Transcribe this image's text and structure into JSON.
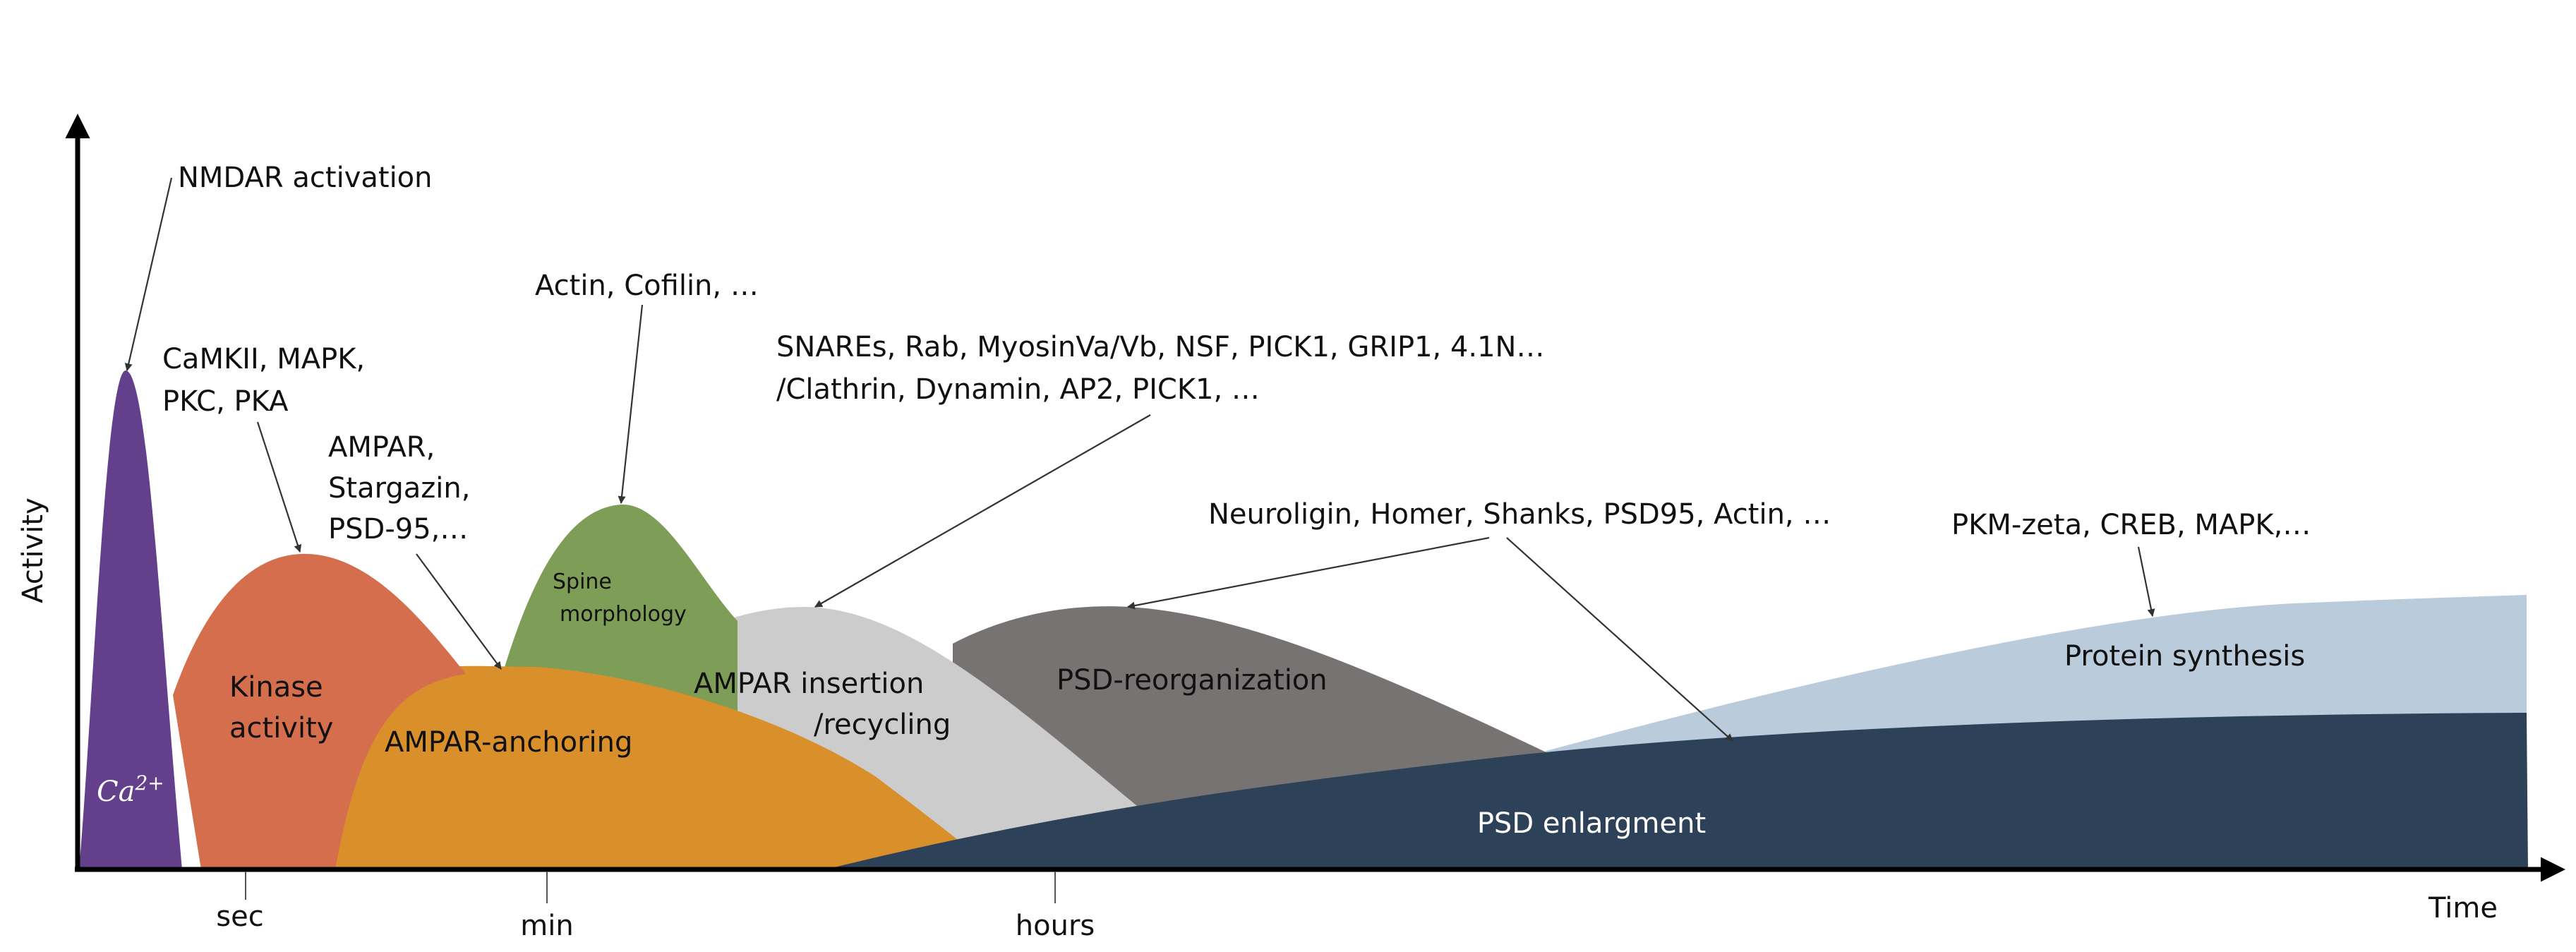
{
  "axes": {
    "y_label": "Activity",
    "x_label": "Time",
    "ticks": [
      {
        "label": "sec"
      },
      {
        "label": "min"
      },
      {
        "label": "hours"
      }
    ]
  },
  "regions": {
    "ca": {
      "label_main": "Ca",
      "label_sup": "2+",
      "color": "#633F8C"
    },
    "kinase": {
      "label_line1": "Kinase",
      "label_line2": "activity",
      "color": "#D46E4D"
    },
    "anchoring": {
      "label": "AMPAR-anchoring",
      "color": "#D98F2A"
    },
    "spine": {
      "label_line1": "Spine",
      "label_line2": "morphology",
      "color": "#7E9D56"
    },
    "insertion": {
      "label_line1": "AMPAR insertion",
      "label_line2": "/recycling",
      "color": "#CCCCCC"
    },
    "psd_reorg": {
      "label": "PSD-reorganization",
      "color": "#787373"
    },
    "protein_synthesis": {
      "label": "Protein synthesis",
      "color": "#BACBDC"
    },
    "psd_enlargement": {
      "label": "PSD enlargment",
      "color": "#2D4159"
    }
  },
  "annotations": {
    "nmdar": "NMDAR activation",
    "kinases_line1": "CaMKII, MAPK,",
    "kinases_line2": "PKC, PKA",
    "ampar_line1": "AMPAR,",
    "ampar_line2": "Stargazin,",
    "ampar_line3": "PSD-95,…",
    "actin": "Actin, Cofilin, …",
    "trafficking_line1": "SNAREs, Rab, MyosinVa/Vb, NSF, PICK1, GRIP1, 4.1N…",
    "trafficking_line2": "/Clathrin, Dynamin, AP2, PICK1, …",
    "psd_proteins": "Neuroligin, Homer, Shanks, PSD95, Actin, …",
    "synthesis_proteins": "PKM-zeta, CREB, MAPK,…"
  }
}
